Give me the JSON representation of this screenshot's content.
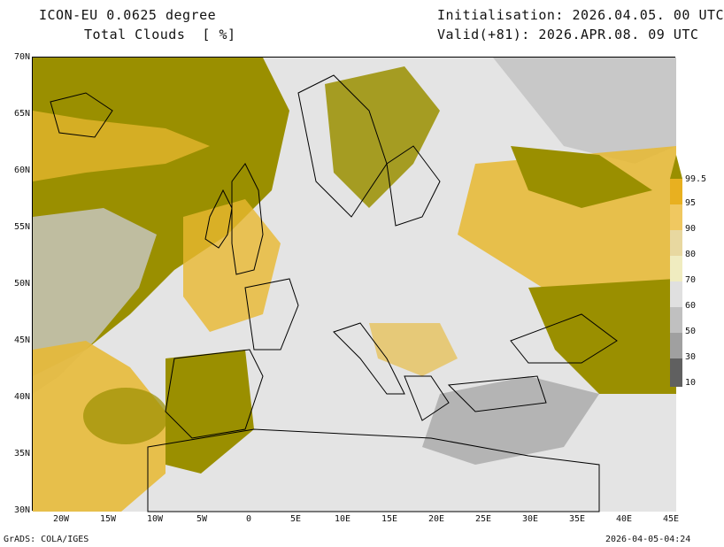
{
  "header": {
    "model_title": "ICON-EU 0.0625 degree",
    "field_title": "Total Clouds  [ %]",
    "init_text": "Initialisation: 2026.04.05. 00 UTC",
    "valid_text": "Valid(+81): 2026.APR.08. 09 UTC"
  },
  "footer": {
    "software": "GrADS: COLA/IGES",
    "timestamp": "2026-04-05-04:24"
  },
  "axes": {
    "lat_labels": [
      "70N",
      "65N",
      "60N",
      "55N",
      "50N",
      "45N",
      "40N",
      "35N",
      "30N"
    ],
    "lon_labels": [
      "20W",
      "15W",
      "10W",
      "5W",
      "0",
      "5E",
      "10E",
      "15E",
      "20E",
      "25E",
      "30E",
      "35E",
      "40E",
      "45E"
    ]
  },
  "colorbar": {
    "labels": [
      "99.5",
      "95",
      "90",
      "80",
      "70",
      "60",
      "50",
      "30",
      "10"
    ],
    "colors": [
      "#9a8f00",
      "#e8b020",
      "#f0c860",
      "#e8d8a0",
      "#f0ecc0",
      "#e0e0e0",
      "#c0c0c0",
      "#a0a0a0",
      "#808080",
      "#606060"
    ]
  },
  "map_colors": {
    "overcast": "#9a8f00",
    "high_cloud": "#e8b830",
    "mid_cloud": "#c8c8c8",
    "clear": "#e4e4e4",
    "coast": "#000000"
  }
}
